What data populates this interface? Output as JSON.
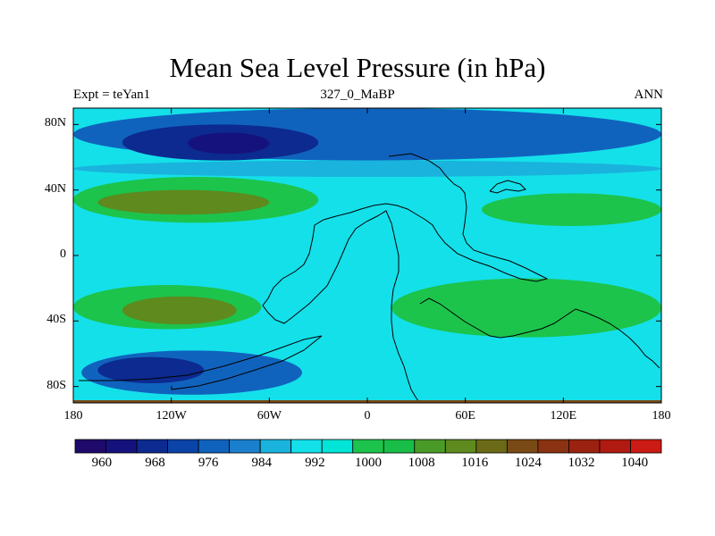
{
  "title": "Mean Sea Level Pressure (in hPa)",
  "subtitle_left": "Expt = teYan1",
  "subtitle_center": "327_0_MaBP",
  "subtitle_right": "ANN",
  "y_axis": {
    "labels": [
      "80N",
      "40N",
      "0",
      "40S",
      "80S"
    ],
    "values": [
      80,
      40,
      0,
      -40,
      -80
    ],
    "range": [
      -90,
      90
    ]
  },
  "x_axis": {
    "labels": [
      "180",
      "120W",
      "60W",
      "0",
      "60E",
      "120E",
      "180"
    ],
    "values": [
      -180,
      -120,
      -60,
      0,
      60,
      120,
      180
    ],
    "range": [
      -180,
      180
    ]
  },
  "colorbar": {
    "colors": [
      "#1f0a6b",
      "#16127d",
      "#0c2a8f",
      "#0b44a8",
      "#1063bd",
      "#1a7fcc",
      "#1ab3dd",
      "#14e0ea",
      "#00e5d8",
      "#1cc44c",
      "#19be48",
      "#4a9a28",
      "#5e8a1e",
      "#6a6a18",
      "#7a4a16",
      "#8a3212",
      "#9b2210",
      "#b01a10",
      "#cc1a14"
    ],
    "tick_labels": [
      "960",
      "968",
      "976",
      "984",
      "992",
      "1000",
      "1008",
      "1016",
      "1024",
      "1032",
      "1040"
    ],
    "tick_values": [
      960,
      968,
      976,
      984,
      992,
      1000,
      1008,
      1016,
      1024,
      1032,
      1040
    ],
    "range": [
      956,
      1044
    ]
  },
  "fields": {
    "ocean_color": "#14e0ea",
    "zones": [
      {
        "name": "north-polar-band",
        "level": 988,
        "color": "#1063bd",
        "lon": [
          -180,
          180
        ],
        "lat": [
          58,
          90
        ]
      },
      {
        "name": "north-subpolar-band",
        "level": 992,
        "color": "#1ab3dd",
        "lon": [
          -180,
          180
        ],
        "lat": [
          48,
          58
        ]
      },
      {
        "name": "north-deep-low",
        "level": 980,
        "color": "#0c2a8f",
        "lon": [
          -150,
          -30
        ],
        "lat": [
          58,
          80
        ]
      },
      {
        "name": "north-core-low",
        "level": 972,
        "color": "#16127d",
        "lon": [
          -110,
          -60
        ],
        "lat": [
          62,
          75
        ]
      },
      {
        "name": "north-subtropical-high",
        "level": 1010,
        "color": "#1cc44c",
        "lon": [
          -180,
          -30
        ],
        "lat": [
          20,
          48
        ]
      },
      {
        "name": "north-high-core",
        "level": 1016,
        "color": "#5e8a1e",
        "lon": [
          -165,
          -60
        ],
        "lat": [
          25,
          40
        ]
      },
      {
        "name": "east-north-high",
        "level": 1010,
        "color": "#1cc44c",
        "lon": [
          70,
          180
        ],
        "lat": [
          18,
          38
        ]
      },
      {
        "name": "south-subtropical-high",
        "level": 1010,
        "color": "#1cc44c",
        "lon": [
          -180,
          -65
        ],
        "lat": [
          -45,
          -18
        ]
      },
      {
        "name": "south-high-core",
        "level": 1016,
        "color": "#5e8a1e",
        "lon": [
          -150,
          -80
        ],
        "lat": [
          -42,
          -25
        ]
      },
      {
        "name": "east-south-high",
        "level": 1010,
        "color": "#1cc44c",
        "lon": [
          15,
          180
        ],
        "lat": [
          -50,
          -14
        ]
      },
      {
        "name": "south-subpolar-low",
        "level": 988,
        "color": "#1063bd",
        "lon": [
          -175,
          -40
        ],
        "lat": [
          -85,
          -58
        ]
      },
      {
        "name": "south-core-low",
        "level": 980,
        "color": "#0c2a8f",
        "lon": [
          -165,
          -100
        ],
        "lat": [
          -78,
          -62
        ]
      }
    ]
  }
}
